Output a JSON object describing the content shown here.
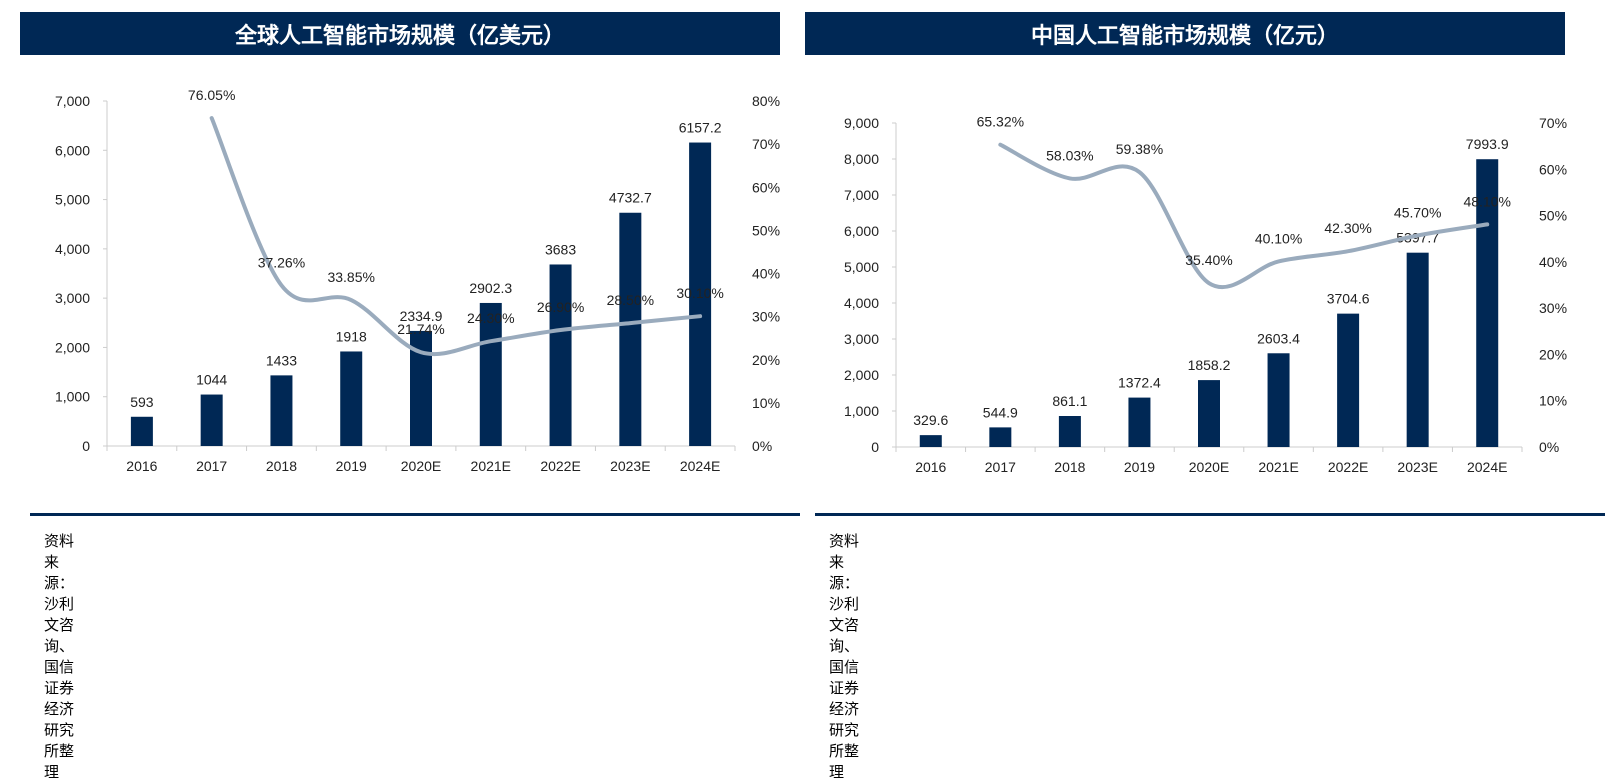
{
  "colors": {
    "bar": "#002855",
    "line": "#9aabbd",
    "header": "#002855"
  },
  "chart_data": [
    {
      "type": "bar+line",
      "title": "全球人工智能市场规模（亿美元）",
      "source": "资料来源：沙利文咨询、国信证券经济研究所整理",
      "categories": [
        "2016",
        "2017",
        "2018",
        "2019",
        "2020E",
        "2021E",
        "2022E",
        "2023E",
        "2024E"
      ],
      "bar_values": [
        593,
        1044,
        1433,
        1918,
        2334.9,
        2902.3,
        3683,
        4732.7,
        6157.2
      ],
      "bar_labels": [
        "593",
        "1044",
        "1433",
        "1918",
        "2334.9",
        "2902.3",
        "3683",
        "4732.7",
        "6157.2"
      ],
      "line_values": [
        null,
        76.05,
        37.26,
        33.85,
        21.74,
        24.3,
        26.9,
        28.5,
        30.1
      ],
      "line_labels": [
        "",
        "76.05%",
        "37.26%",
        "33.85%",
        "21.74%",
        "24.30%",
        "26.90%",
        "28.50%",
        "30.10%"
      ],
      "ylim": [
        0,
        7000
      ],
      "yticks": [
        "0",
        "1,000",
        "2,000",
        "3,000",
        "4,000",
        "5,000",
        "6,000",
        "7,000"
      ],
      "y2lim": [
        0,
        80
      ],
      "y2ticks": [
        "0%",
        "10%",
        "20%",
        "30%",
        "40%",
        "50%",
        "60%",
        "70%",
        "80%"
      ],
      "grid": false
    },
    {
      "type": "bar+line",
      "title": "中国人工智能市场规模（亿元）",
      "source": "资料来源：沙利文咨询、国信证券经济研究所整理",
      "categories": [
        "2016",
        "2017",
        "2018",
        "2019",
        "2020E",
        "2021E",
        "2022E",
        "2023E",
        "2024E"
      ],
      "bar_values": [
        329.6,
        544.9,
        861.1,
        1372.4,
        1858.2,
        2603.4,
        3704.6,
        5397.7,
        7993.9
      ],
      "bar_labels": [
        "329.6",
        "544.9",
        "861.1",
        "1372.4",
        "1858.2",
        "2603.4",
        "3704.6",
        "5397.7",
        "7993.9"
      ],
      "line_values": [
        null,
        65.32,
        58.03,
        59.38,
        35.4,
        40.1,
        42.3,
        45.7,
        48.1
      ],
      "line_labels": [
        "",
        "65.32%",
        "58.03%",
        "59.38%",
        "35.40%",
        "40.10%",
        "42.30%",
        "45.70%",
        "48.10%"
      ],
      "ylim": [
        0,
        9000
      ],
      "yticks": [
        "0",
        "1,000",
        "2,000",
        "3,000",
        "4,000",
        "5,000",
        "6,000",
        "7,000",
        "8,000",
        "9,000"
      ],
      "y2lim": [
        0,
        70
      ],
      "y2ticks": [
        "0%",
        "10%",
        "20%",
        "30%",
        "40%",
        "50%",
        "60%",
        "70%"
      ],
      "grid": false
    }
  ]
}
